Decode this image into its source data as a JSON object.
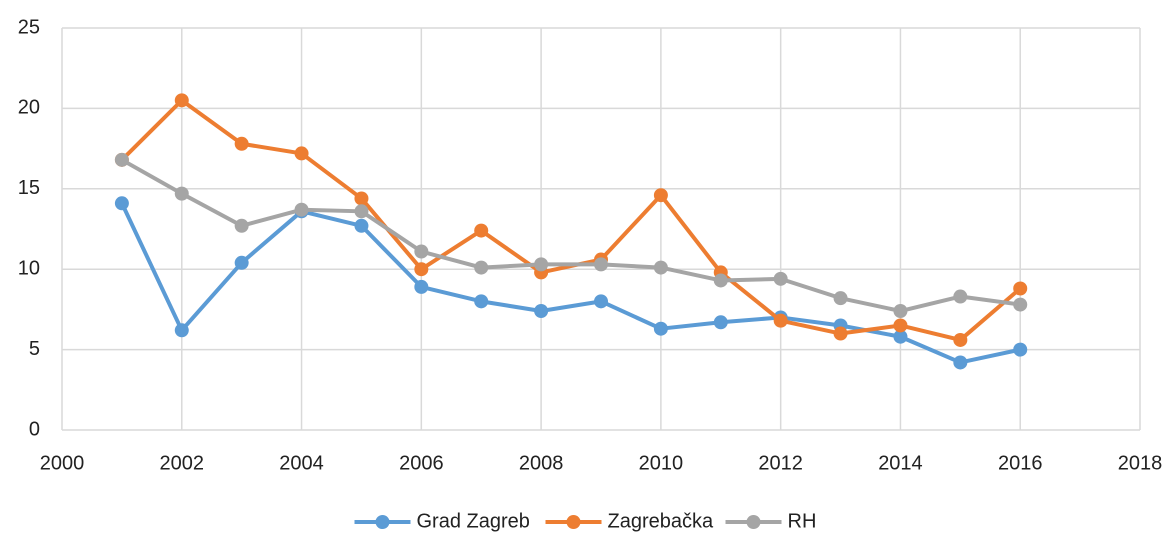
{
  "chart_data": {
    "type": "line",
    "x": [
      2001,
      2002,
      2003,
      2004,
      2005,
      2006,
      2007,
      2008,
      2009,
      2010,
      2011,
      2012,
      2013,
      2014,
      2015,
      2016
    ],
    "series": [
      {
        "name": "Grad Zagreb",
        "color": "#5b9bd5",
        "values": [
          14.1,
          6.2,
          10.4,
          13.6,
          12.7,
          8.9,
          8.0,
          7.4,
          8.0,
          6.3,
          6.7,
          7.0,
          6.5,
          5.8,
          4.2,
          5.0
        ]
      },
      {
        "name": "Zagrebačka",
        "color": "#ed7d31",
        "values": [
          16.8,
          20.5,
          17.8,
          17.2,
          14.4,
          10.0,
          12.4,
          9.8,
          10.6,
          14.6,
          9.8,
          6.8,
          6.0,
          6.5,
          5.6,
          8.8
        ]
      },
      {
        "name": "RH",
        "color": "#a5a5a5",
        "values": [
          16.8,
          14.7,
          12.7,
          13.7,
          13.6,
          11.1,
          10.1,
          10.3,
          10.3,
          10.1,
          9.3,
          9.4,
          8.2,
          7.4,
          8.3,
          7.8
        ]
      }
    ],
    "xlim": [
      2000,
      2018
    ],
    "xticks": [
      2000,
      2002,
      2004,
      2006,
      2008,
      2010,
      2012,
      2014,
      2016,
      2018
    ],
    "ylim": [
      0,
      25
    ],
    "yticks": [
      0,
      5,
      10,
      15,
      20,
      25
    ],
    "grid": true,
    "legend": "bottom"
  }
}
